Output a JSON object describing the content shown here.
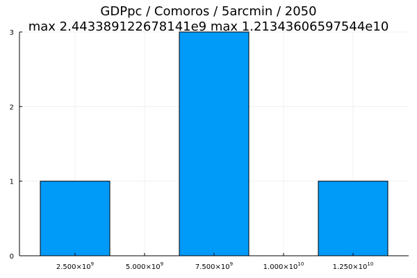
{
  "chart_data": {
    "type": "bar",
    "title": "GDPpc / Comoros / 5arcmin / 2050",
    "subtitle": "max 2.443389122678141e9  max 1.21343606597544e10",
    "xlabel": "",
    "ylabel": "",
    "bin_width": 2500000000,
    "bins": [
      {
        "start": 1250000000,
        "end": 3750000000,
        "count": 1
      },
      {
        "start": 3750000000,
        "end": 6250000000,
        "count": 0
      },
      {
        "start": 6250000000,
        "end": 8750000000,
        "count": 3
      },
      {
        "start": 8750000000,
        "end": 11250000000,
        "count": 0
      },
      {
        "start": 11250000000,
        "end": 13750000000,
        "count": 1
      }
    ],
    "xlim": [
      500000000,
      14500000000
    ],
    "ylim": [
      0,
      3
    ],
    "x_ticks": [
      {
        "value": 2500000000,
        "mantissa": "2.500",
        "exp": "9"
      },
      {
        "value": 5000000000,
        "mantissa": "5.000",
        "exp": "9"
      },
      {
        "value": 7500000000,
        "mantissa": "7.500",
        "exp": "9"
      },
      {
        "value": 10000000000,
        "mantissa": "1.000",
        "exp": "10"
      },
      {
        "value": 12500000000,
        "mantissa": "1.250",
        "exp": "10"
      }
    ],
    "y_ticks": [
      0,
      1,
      2,
      3
    ],
    "grid": true,
    "legend": "none",
    "colors": {
      "bar": "#009af9",
      "bar_stroke": "#000000",
      "grid": "#e6e6e6",
      "axis": "#000000"
    }
  }
}
